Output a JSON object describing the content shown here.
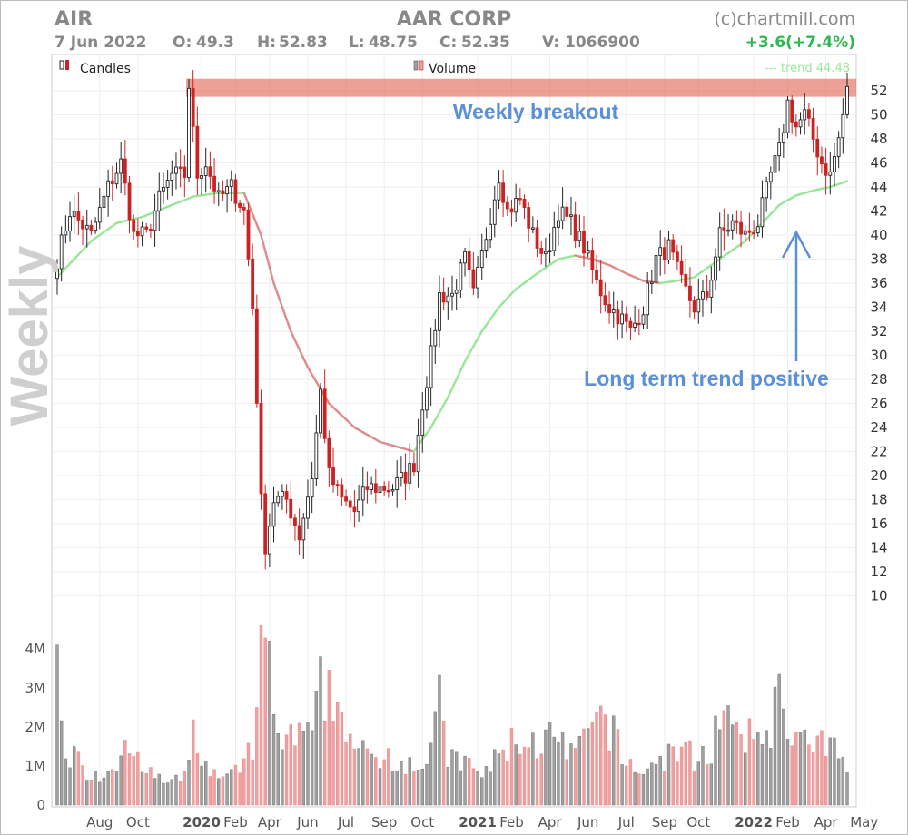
{
  "header": {
    "ticker": "AIR",
    "company": "AAR CORP",
    "watermark": "(c)chartmill.com",
    "date": "7 Jun 2022",
    "open_label": "O:",
    "open": "49.3",
    "high_label": "H:",
    "high": "52.83",
    "low_label": "L:",
    "low": "48.75",
    "close_label": "C:",
    "close": "52.35",
    "volume_label": "V:",
    "volume": "1066900",
    "change": "+3.6(+7.4%)",
    "change_color": "#2fb84f"
  },
  "legend": {
    "candles": "Candles",
    "volume": "Volume",
    "trend": "--- trend 44.48"
  },
  "side_label": "Weekly",
  "annotations": {
    "breakout": "Weekly breakout",
    "trend": "Long term trend positive"
  },
  "chart_data": {
    "type": "candlestick",
    "price_axis": {
      "ticks": [
        10,
        12,
        14,
        16,
        18,
        20,
        22,
        24,
        26,
        28,
        30,
        32,
        34,
        36,
        38,
        40,
        42,
        44,
        46,
        48,
        50,
        52
      ],
      "position": "right"
    },
    "volume_axis": {
      "ticks": [
        0,
        1,
        2,
        3,
        4
      ],
      "tick_labels": [
        "0",
        "1M",
        "2M",
        "3M",
        "4M"
      ],
      "position": "left"
    },
    "x_axis_labels": [
      {
        "w": 10,
        "label": "Aug",
        "bold": false
      },
      {
        "w": 19,
        "label": "Oct",
        "bold": false
      },
      {
        "w": 34,
        "label": "2020",
        "bold": true
      },
      {
        "w": 42,
        "label": "Feb",
        "bold": false
      },
      {
        "w": 50,
        "label": "Apr",
        "bold": false
      },
      {
        "w": 59,
        "label": "Jun",
        "bold": false
      },
      {
        "w": 68,
        "label": "Jul",
        "bold": false
      },
      {
        "w": 77,
        "label": "Sep",
        "bold": false
      },
      {
        "w": 86,
        "label": "Oct",
        "bold": false
      },
      {
        "w": 99,
        "label": "2021",
        "bold": true
      },
      {
        "w": 107,
        "label": "Feb",
        "bold": false
      },
      {
        "w": 116,
        "label": "Apr",
        "bold": false
      },
      {
        "w": 125,
        "label": "Jun",
        "bold": false
      },
      {
        "w": 134,
        "label": "Jul",
        "bold": false
      },
      {
        "w": 143,
        "label": "Sep",
        "bold": false
      },
      {
        "w": 151,
        "label": "Oct",
        "bold": false
      },
      {
        "w": 164,
        "label": "2022",
        "bold": true
      },
      {
        "w": 172,
        "label": "Feb",
        "bold": false
      },
      {
        "w": 181,
        "label": "Apr",
        "bold": false
      },
      {
        "w": 190,
        "label": "May",
        "bold": false
      }
    ],
    "resistance_zone": [
      51.5,
      53
    ],
    "colors": {
      "up_candle": "#ffffff",
      "up_outline": "#222222",
      "down_candle": "#cc2222",
      "volume_up": "#a0a0a0",
      "volume_down": "#f0a0a0",
      "trend_up": "#99e699",
      "trend_down": "#e08a8a",
      "zone": "#e06050",
      "annotation": "#5b8fd6"
    },
    "anchors": {
      "close": [
        [
          0,
          38
        ],
        [
          3,
          42
        ],
        [
          8,
          40
        ],
        [
          12,
          44
        ],
        [
          15,
          46
        ],
        [
          18,
          40
        ],
        [
          21,
          40
        ],
        [
          24,
          43
        ],
        [
          27,
          45
        ],
        [
          30,
          45
        ],
        [
          31,
          52
        ],
        [
          33,
          45
        ],
        [
          35,
          46
        ],
        [
          38,
          43
        ],
        [
          41,
          44
        ],
        [
          44,
          42
        ],
        [
          46,
          34
        ],
        [
          48,
          19
        ],
        [
          49,
          14
        ],
        [
          51,
          18
        ],
        [
          54,
          18
        ],
        [
          57,
          15
        ],
        [
          60,
          20
        ],
        [
          62,
          27
        ],
        [
          64,
          20
        ],
        [
          67,
          18
        ],
        [
          70,
          17
        ],
        [
          73,
          19
        ],
        [
          76,
          19
        ],
        [
          79,
          19
        ],
        [
          82,
          20
        ],
        [
          84,
          21
        ],
        [
          86,
          26
        ],
        [
          88,
          30
        ],
        [
          90,
          35
        ],
        [
          93,
          35
        ],
        [
          96,
          38
        ],
        [
          98,
          35
        ],
        [
          101,
          40
        ],
        [
          104,
          45
        ],
        [
          106,
          42
        ],
        [
          109,
          43
        ],
        [
          112,
          40
        ],
        [
          115,
          38
        ],
        [
          118,
          42
        ],
        [
          121,
          41
        ],
        [
          124,
          39
        ],
        [
          127,
          36
        ],
        [
          130,
          34
        ],
        [
          133,
          33
        ],
        [
          135,
          32
        ],
        [
          138,
          34
        ],
        [
          141,
          38
        ],
        [
          144,
          39
        ],
        [
          147,
          36
        ],
        [
          150,
          34
        ],
        [
          153,
          35
        ],
        [
          156,
          40
        ],
        [
          159,
          41
        ],
        [
          162,
          40
        ],
        [
          165,
          41
        ],
        [
          168,
          45
        ],
        [
          170,
          47
        ],
        [
          172,
          51
        ],
        [
          174,
          49
        ],
        [
          176,
          50
        ],
        [
          178,
          48
        ],
        [
          180,
          46
        ],
        [
          182,
          45
        ],
        [
          184,
          48
        ],
        [
          186,
          52
        ]
      ],
      "trend": [
        [
          0,
          36.5
        ],
        [
          8,
          39.5
        ],
        [
          14,
          41
        ],
        [
          20,
          41.5
        ],
        [
          27,
          42.5
        ],
        [
          32,
          43.2
        ],
        [
          38,
          43.5
        ],
        [
          44,
          43.5
        ],
        [
          48,
          40
        ],
        [
          51,
          36
        ],
        [
          55,
          32
        ],
        [
          59,
          29
        ],
        [
          64,
          26
        ],
        [
          70,
          24
        ],
        [
          76,
          22.8
        ],
        [
          84,
          22
        ],
        [
          88,
          24
        ],
        [
          92,
          26.5
        ],
        [
          96,
          29.5
        ],
        [
          100,
          32
        ],
        [
          104,
          34
        ],
        [
          108,
          35.5
        ],
        [
          113,
          36.8
        ],
        [
          118,
          38
        ],
        [
          122,
          38.3
        ],
        [
          126,
          38
        ],
        [
          130,
          37.5
        ],
        [
          134,
          36.8
        ],
        [
          138,
          36.2
        ],
        [
          142,
          36
        ],
        [
          146,
          36.2
        ],
        [
          150,
          36.5
        ],
        [
          154,
          37.5
        ],
        [
          158,
          38.5
        ],
        [
          162,
          39.5
        ],
        [
          166,
          41
        ],
        [
          170,
          42.5
        ],
        [
          174,
          43.3
        ],
        [
          178,
          43.7
        ],
        [
          182,
          44
        ],
        [
          186,
          44.48
        ]
      ],
      "volume": [
        [
          0,
          4.1
        ],
        [
          2,
          1.5
        ],
        [
          6,
          1
        ],
        [
          10,
          0.8
        ],
        [
          14,
          1.1
        ],
        [
          16,
          2.3
        ],
        [
          18,
          1.2
        ],
        [
          22,
          0.8
        ],
        [
          26,
          0.6
        ],
        [
          30,
          0.7
        ],
        [
          32,
          2
        ],
        [
          36,
          0.8
        ],
        [
          40,
          0.7
        ],
        [
          44,
          1
        ],
        [
          46,
          1.6
        ],
        [
          47,
          2.2
        ],
        [
          48,
          4.6
        ],
        [
          49,
          3.5
        ],
        [
          50,
          2.8
        ],
        [
          52,
          1.8
        ],
        [
          56,
          1.7
        ],
        [
          58,
          2
        ],
        [
          60,
          1.6
        ],
        [
          62,
          3.8
        ],
        [
          63,
          3.1
        ],
        [
          65,
          2.8
        ],
        [
          68,
          2.4
        ],
        [
          70,
          1.5
        ],
        [
          74,
          1.2
        ],
        [
          78,
          1.4
        ],
        [
          82,
          1.2
        ],
        [
          86,
          1.1
        ],
        [
          88,
          1.5
        ],
        [
          90,
          2.7
        ],
        [
          92,
          1.3
        ],
        [
          96,
          1.1
        ],
        [
          100,
          0.8
        ],
        [
          104,
          1.3
        ],
        [
          108,
          1.8
        ],
        [
          112,
          1.6
        ],
        [
          116,
          1.8
        ],
        [
          120,
          1.4
        ],
        [
          124,
          1.6
        ],
        [
          128,
          2.4
        ],
        [
          130,
          2.1
        ],
        [
          134,
          1.1
        ],
        [
          138,
          0.9
        ],
        [
          142,
          1.2
        ],
        [
          146,
          1.5
        ],
        [
          150,
          1.3
        ],
        [
          154,
          1.5
        ],
        [
          156,
          2.6
        ],
        [
          160,
          1.7
        ],
        [
          164,
          1.8
        ],
        [
          168,
          2.2
        ],
        [
          170,
          2.9
        ],
        [
          172,
          2.4
        ],
        [
          174,
          1.8
        ],
        [
          178,
          1.5
        ],
        [
          182,
          1.6
        ],
        [
          186,
          1
        ]
      ]
    }
  }
}
